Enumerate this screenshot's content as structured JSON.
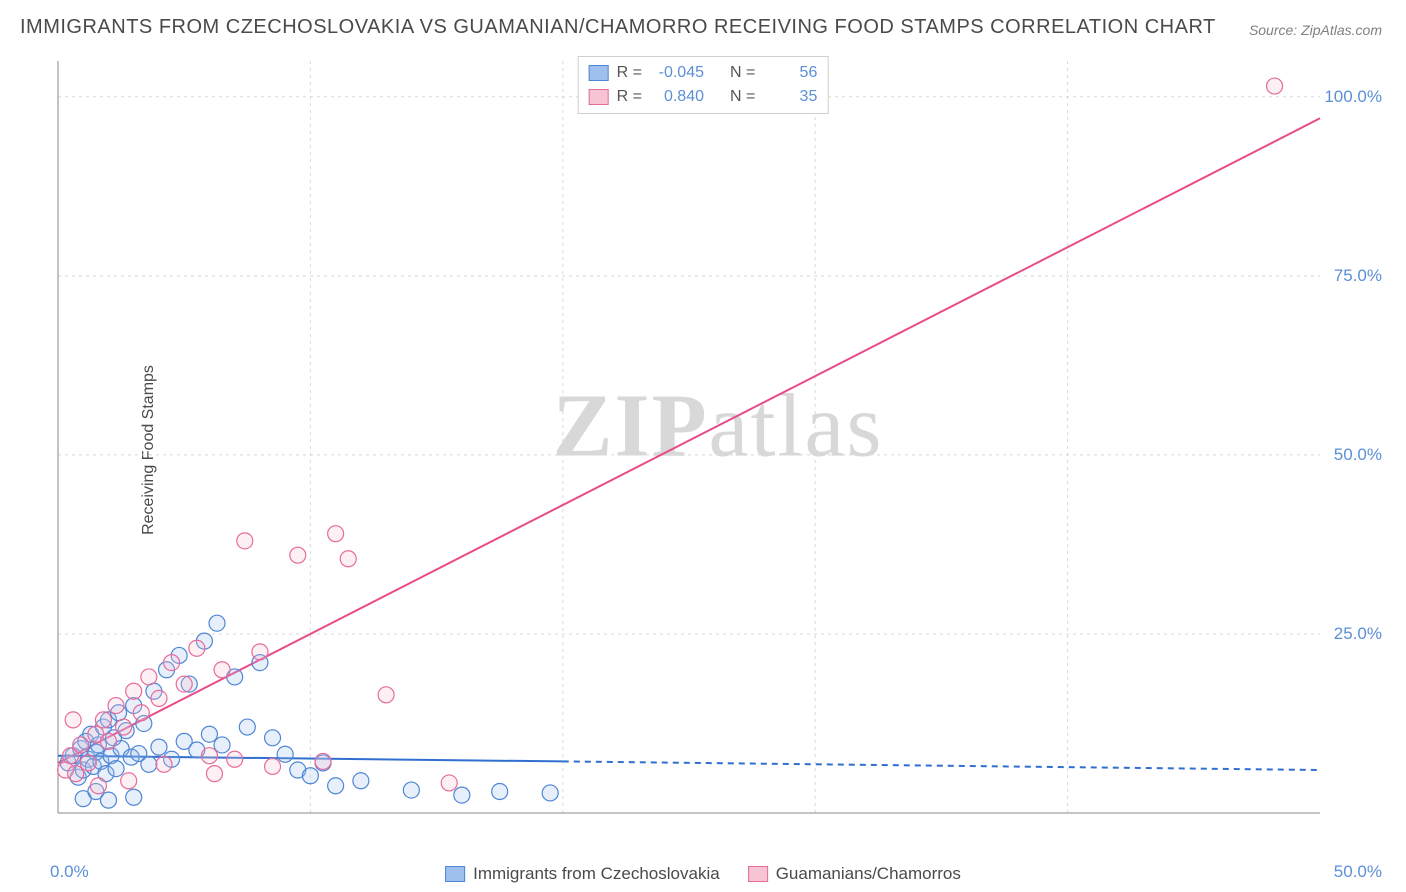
{
  "title": "IMMIGRANTS FROM CZECHOSLOVAKIA VS GUAMANIAN/CHAMORRO RECEIVING FOOD STAMPS CORRELATION CHART",
  "source": "Source: ZipAtlas.com",
  "watermark": "ZIPatlas",
  "chart": {
    "type": "scatter",
    "xlabel": "",
    "ylabel": "Receiving Food Stamps",
    "xlim": [
      0,
      50
    ],
    "ylim": [
      0,
      105
    ],
    "x_ticks": [
      0,
      50
    ],
    "x_tick_labels": [
      "0.0%",
      "50.0%"
    ],
    "y_ticks": [
      25,
      50,
      75,
      100
    ],
    "y_tick_labels": [
      "25.0%",
      "50.0%",
      "75.0%",
      "100.0%"
    ],
    "background_color": "#ffffff",
    "grid_color": "#d8d8d8",
    "axis_color": "#888888",
    "tick_label_color": "#5b8fd6",
    "grid_dash": "3,4",
    "marker_radius": 8,
    "marker_stroke_width": 1.2,
    "marker_fill_opacity": 0.25,
    "series": [
      {
        "name": "Immigrants from Czechoslovakia",
        "color_fill": "#9fc0ec",
        "color_stroke": "#4f86d6",
        "R": "-0.045",
        "N": "56",
        "trend": {
          "x1": 0,
          "y1": 8.0,
          "x2": 50,
          "y2": 6.0,
          "solid_until_x": 20,
          "stroke": "#2f6fd0",
          "stroke_width": 2,
          "dash": "6,5"
        },
        "points": [
          [
            0.4,
            7
          ],
          [
            0.6,
            8
          ],
          [
            0.8,
            5
          ],
          [
            0.9,
            9
          ],
          [
            1.0,
            6
          ],
          [
            1.1,
            10
          ],
          [
            1.2,
            7.5
          ],
          [
            1.3,
            11
          ],
          [
            1.4,
            6.5
          ],
          [
            1.5,
            8.5
          ],
          [
            1.6,
            9.5
          ],
          [
            1.7,
            7.2
          ],
          [
            1.8,
            12
          ],
          [
            1.9,
            5.5
          ],
          [
            2.0,
            13
          ],
          [
            2.1,
            8
          ],
          [
            2.2,
            10.5
          ],
          [
            2.3,
            6.2
          ],
          [
            2.4,
            14
          ],
          [
            2.5,
            9
          ],
          [
            2.7,
            11.5
          ],
          [
            2.9,
            7.8
          ],
          [
            3.0,
            15
          ],
          [
            3.2,
            8.3
          ],
          [
            3.4,
            12.5
          ],
          [
            3.6,
            6.8
          ],
          [
            3.8,
            17
          ],
          [
            4.0,
            9.2
          ],
          [
            4.3,
            20
          ],
          [
            4.5,
            7.5
          ],
          [
            4.8,
            22
          ],
          [
            5.0,
            10
          ],
          [
            5.2,
            18
          ],
          [
            5.5,
            8.8
          ],
          [
            5.8,
            24
          ],
          [
            6.0,
            11
          ],
          [
            6.3,
            26.5
          ],
          [
            6.5,
            9.5
          ],
          [
            7.0,
            19
          ],
          [
            7.5,
            12
          ],
          [
            8.0,
            21
          ],
          [
            8.5,
            10.5
          ],
          [
            9.0,
            8.2
          ],
          [
            9.5,
            6
          ],
          [
            10.0,
            5.2
          ],
          [
            10.5,
            7
          ],
          [
            11.0,
            3.8
          ],
          [
            12.0,
            4.5
          ],
          [
            14.0,
            3.2
          ],
          [
            16.0,
            2.5
          ],
          [
            1.0,
            2
          ],
          [
            1.5,
            3
          ],
          [
            2.0,
            1.8
          ],
          [
            3.0,
            2.2
          ],
          [
            17.5,
            3
          ],
          [
            19.5,
            2.8
          ]
        ]
      },
      {
        "name": "Guamanians/Chamorros",
        "color_fill": "#f6c4d3",
        "color_stroke": "#e76b9a",
        "R": "0.840",
        "N": "35",
        "trend": {
          "x1": 0,
          "y1": 7,
          "x2": 50,
          "y2": 97,
          "solid_until_x": 50,
          "stroke": "#e84b8a",
          "stroke_width": 2
        },
        "points": [
          [
            0.3,
            6
          ],
          [
            0.5,
            8
          ],
          [
            0.7,
            5.5
          ],
          [
            0.9,
            9.5
          ],
          [
            1.2,
            7
          ],
          [
            1.5,
            11
          ],
          [
            1.8,
            13
          ],
          [
            2.0,
            10
          ],
          [
            2.3,
            15
          ],
          [
            2.6,
            12
          ],
          [
            3.0,
            17
          ],
          [
            3.3,
            14
          ],
          [
            3.6,
            19
          ],
          [
            4.0,
            16
          ],
          [
            4.5,
            21
          ],
          [
            5.0,
            18
          ],
          [
            5.5,
            23
          ],
          [
            6.0,
            8
          ],
          [
            6.5,
            20
          ],
          [
            7.0,
            7.5
          ],
          [
            7.4,
            38
          ],
          [
            8.0,
            22.5
          ],
          [
            8.5,
            6.5
          ],
          [
            9.5,
            36
          ],
          [
            10.5,
            7.2
          ],
          [
            11.0,
            39
          ],
          [
            11.5,
            35.5
          ],
          [
            13.0,
            16.5
          ],
          [
            15.5,
            4.2
          ],
          [
            6.2,
            5.5
          ],
          [
            4.2,
            6.8
          ],
          [
            2.8,
            4.5
          ],
          [
            1.6,
            3.8
          ],
          [
            48.2,
            101.5
          ],
          [
            0.6,
            13
          ]
        ]
      }
    ],
    "legend_top": {
      "border_color": "#d0d0d0",
      "value_color": "#5b8fd6",
      "label_R": "R =",
      "label_N": "N ="
    },
    "legend_bottom": {
      "text_color": "#4a4a4a"
    }
  }
}
